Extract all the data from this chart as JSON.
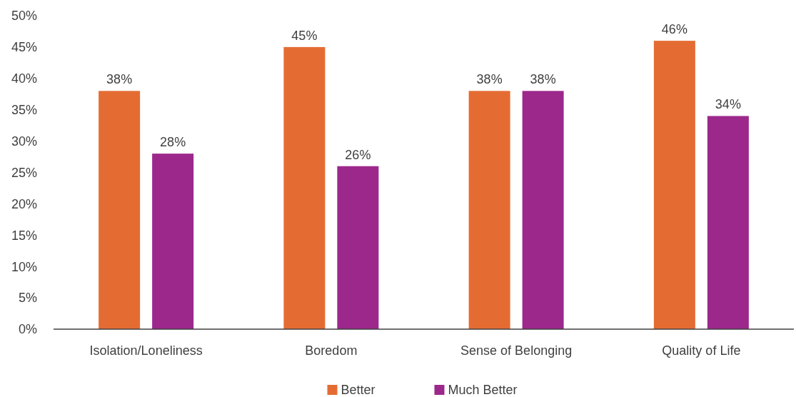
{
  "chart_data": {
    "type": "bar",
    "categories": [
      "Isolation/Loneliness",
      "Boredom",
      "Sense of Belonging",
      "Quality of Life"
    ],
    "series": [
      {
        "name": "Better",
        "color": "#e46c32",
        "values": [
          38,
          45,
          38,
          46
        ],
        "value_labels": [
          "38%",
          "45%",
          "38%",
          "46%"
        ]
      },
      {
        "name": "Much Better",
        "color": "#9c288c",
        "values": [
          28,
          26,
          38,
          34
        ],
        "value_labels": [
          "28%",
          "26%",
          "38%",
          "34%"
        ]
      }
    ],
    "ylim": [
      0,
      50
    ],
    "yticks": [
      {
        "value": 0,
        "label": "0%"
      },
      {
        "value": 5,
        "label": "5%"
      },
      {
        "value": 10,
        "label": "10%"
      },
      {
        "value": 15,
        "label": "15%"
      },
      {
        "value": 20,
        "label": "20%"
      },
      {
        "value": 25,
        "label": "25%"
      },
      {
        "value": 30,
        "label": "30%"
      },
      {
        "value": 35,
        "label": "35%"
      },
      {
        "value": 40,
        "label": "40%"
      },
      {
        "value": 45,
        "label": "45%"
      },
      {
        "value": 50,
        "label": "50%"
      }
    ],
    "grid": false,
    "legend": "bottom"
  }
}
